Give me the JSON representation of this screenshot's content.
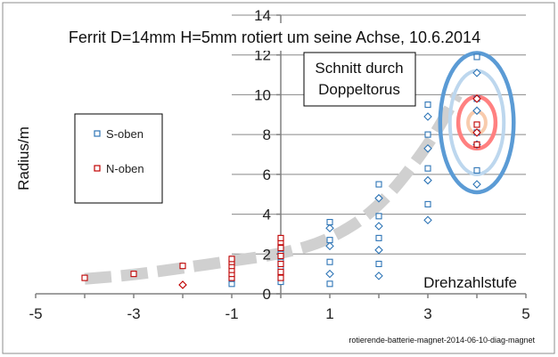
{
  "chart_data": {
    "type": "scatter",
    "title": "Ferrit D=14mm H=5mm rotiert um seine Achse, 10.6.2014",
    "xlabel": "Drehzahlstufe",
    "ylabel": "Radius/m",
    "xlim": [
      -5,
      5
    ],
    "ylim": [
      0,
      14
    ],
    "x_ticks": [
      "-5",
      "-3",
      "-1",
      "1",
      "3",
      "5"
    ],
    "y_ticks": [
      "0",
      "2",
      "4",
      "6",
      "8",
      "10",
      "12",
      "14"
    ],
    "grid": "horizontal",
    "legend": "left",
    "annotation": "Schnitt durch Doppeltorus",
    "footer": "rotierende-batterie-magnet-2014-06-10-diag-magnet",
    "colors": {
      "s_oben": "#2e75b6",
      "n_oben": "#c00000",
      "trend": "#d0d0d0"
    },
    "series": [
      {
        "name": "S-oben",
        "color": "#2e75b6",
        "points": [
          [
            -1,
            0.5
          ],
          [
            -1,
            0.75
          ],
          [
            0,
            0.6
          ],
          [
            0,
            1.0
          ],
          [
            0,
            1.3
          ],
          [
            0,
            1.6
          ],
          [
            0,
            2.0
          ],
          [
            0,
            2.4
          ],
          [
            1,
            0.5
          ],
          [
            1,
            1.0
          ],
          [
            1,
            1.6
          ],
          [
            1,
            2.4
          ],
          [
            1,
            2.7
          ],
          [
            1,
            3.3
          ],
          [
            1,
            3.6
          ],
          [
            2,
            0.9
          ],
          [
            2,
            1.5
          ],
          [
            2,
            2.2
          ],
          [
            2,
            2.8
          ],
          [
            2,
            3.4
          ],
          [
            2,
            3.9
          ],
          [
            2,
            4.8
          ],
          [
            2,
            5.5
          ],
          [
            3,
            3.7
          ],
          [
            3,
            4.5
          ],
          [
            3,
            5.7
          ],
          [
            3,
            6.3
          ],
          [
            3,
            7.3
          ],
          [
            3,
            8.0
          ],
          [
            3,
            8.9
          ],
          [
            3,
            9.5
          ],
          [
            4,
            5.5
          ],
          [
            4,
            6.2
          ],
          [
            4,
            7.5
          ],
          [
            4,
            8.1
          ],
          [
            4,
            9.2
          ],
          [
            4,
            9.8
          ],
          [
            4,
            11.1
          ],
          [
            4,
            11.9
          ]
        ]
      },
      {
        "name": "N-oben",
        "color": "#c00000",
        "points": [
          [
            -4,
            0.8
          ],
          [
            -3,
            1.0
          ],
          [
            -2,
            1.4
          ],
          [
            -2,
            0.45
          ],
          [
            -1,
            0.8
          ],
          [
            -1,
            1.0
          ],
          [
            -1,
            1.2
          ],
          [
            -1,
            1.4
          ],
          [
            -1,
            1.6
          ],
          [
            -1,
            1.75
          ],
          [
            0,
            0.8
          ],
          [
            0,
            1.1
          ],
          [
            0,
            1.5
          ],
          [
            0,
            1.9
          ],
          [
            0,
            2.3
          ],
          [
            0,
            2.6
          ],
          [
            0,
            2.8
          ],
          [
            4,
            7.5
          ],
          [
            4,
            8.1
          ],
          [
            4,
            8.5
          ],
          [
            4,
            9.8
          ]
        ]
      }
    ],
    "trend": {
      "name": "",
      "points": [
        [
          -4,
          0.75
        ],
        [
          -3,
          0.95
        ],
        [
          -2,
          1.3
        ],
        [
          -1,
          1.65
        ],
        [
          0,
          2.0
        ],
        [
          1,
          2.7
        ],
        [
          2,
          4.3
        ],
        [
          3,
          7.4
        ],
        [
          3.6,
          10.0
        ]
      ]
    },
    "ellipses": [
      {
        "cx": 4,
        "cy": 8.6,
        "rx": 0.75,
        "ry": 3.5,
        "color": "#5b9bd5"
      },
      {
        "cx": 4,
        "cy": 8.6,
        "rx": 0.55,
        "ry": 2.6,
        "color": "#bdd7ee"
      },
      {
        "cx": 4,
        "cy": 8.6,
        "rx": 0.38,
        "ry": 1.3,
        "color": "#ff8080"
      },
      {
        "cx": 4,
        "cy": 8.6,
        "rx": 0.18,
        "ry": 0.55,
        "color": "#f8cbad"
      }
    ]
  }
}
